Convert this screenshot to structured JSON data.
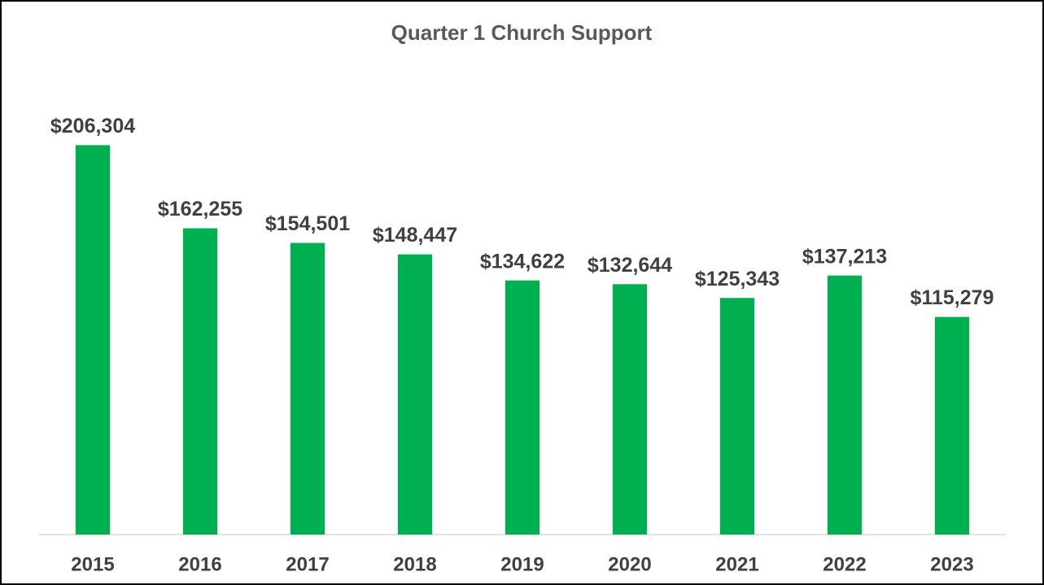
{
  "chart_data": {
    "type": "bar",
    "title": "Quarter 1 Church Support",
    "categories": [
      "2015",
      "2016",
      "2017",
      "2018",
      "2019",
      "2020",
      "2021",
      "2022",
      "2023"
    ],
    "values": [
      206304,
      162255,
      154501,
      148447,
      134622,
      132644,
      125343,
      137213,
      115279
    ],
    "value_labels": [
      "$206,304",
      "$162,255",
      "$154,501",
      "$148,447",
      "$134,622",
      "$132,644",
      "$125,343",
      "$137,213",
      "$115,279"
    ],
    "color": "#00b050",
    "ylim": [
      0,
      250000
    ]
  }
}
